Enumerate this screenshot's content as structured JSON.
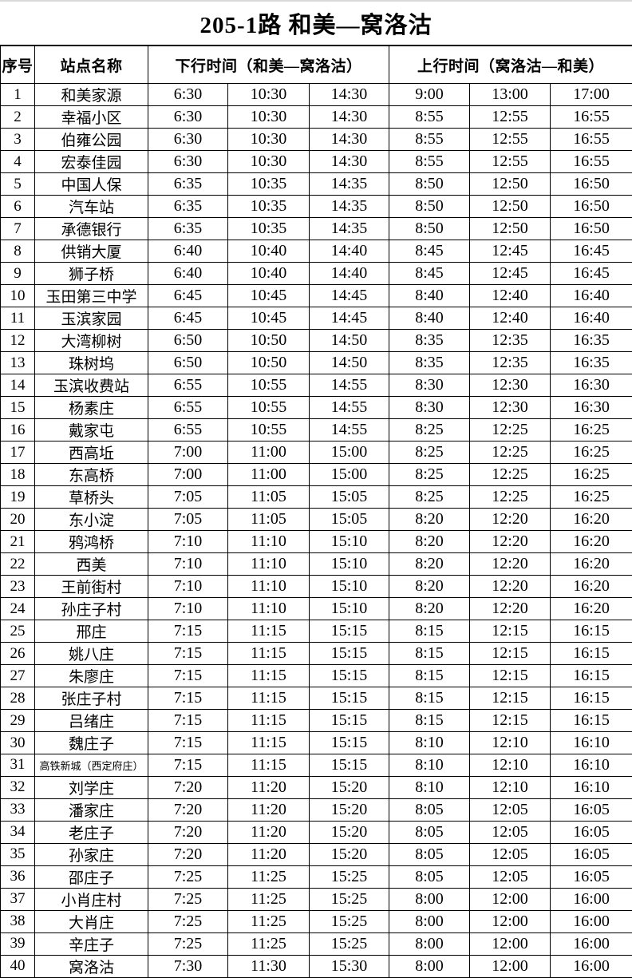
{
  "title": "205-1路 和美—窝洛沽",
  "table": {
    "headers": {
      "no": "序号",
      "station": "站点名称",
      "down": "下行时间（和美—窝洛沽）",
      "up": "上行时间（窝洛沽—和美）"
    },
    "rows": [
      {
        "no": "1",
        "station": "和美家源",
        "down": [
          "6:30",
          "10:30",
          "14:30"
        ],
        "up": [
          "9:00",
          "13:00",
          "17:00"
        ]
      },
      {
        "no": "2",
        "station": "幸福小区",
        "down": [
          "6:30",
          "10:30",
          "14:30"
        ],
        "up": [
          "8:55",
          "12:55",
          "16:55"
        ]
      },
      {
        "no": "3",
        "station": "伯雍公园",
        "down": [
          "6:30",
          "10:30",
          "14:30"
        ],
        "up": [
          "8:55",
          "12:55",
          "16:55"
        ]
      },
      {
        "no": "4",
        "station": "宏泰佳园",
        "down": [
          "6:30",
          "10:30",
          "14:30"
        ],
        "up": [
          "8:55",
          "12:55",
          "16:55"
        ]
      },
      {
        "no": "5",
        "station": "中国人保",
        "down": [
          "6:35",
          "10:35",
          "14:35"
        ],
        "up": [
          "8:50",
          "12:50",
          "16:50"
        ]
      },
      {
        "no": "6",
        "station": "汽车站",
        "down": [
          "6:35",
          "10:35",
          "14:35"
        ],
        "up": [
          "8:50",
          "12:50",
          "16:50"
        ]
      },
      {
        "no": "7",
        "station": "承德银行",
        "down": [
          "6:35",
          "10:35",
          "14:35"
        ],
        "up": [
          "8:50",
          "12:50",
          "16:50"
        ]
      },
      {
        "no": "8",
        "station": "供销大厦",
        "down": [
          "6:40",
          "10:40",
          "14:40"
        ],
        "up": [
          "8:45",
          "12:45",
          "16:45"
        ]
      },
      {
        "no": "9",
        "station": "狮子桥",
        "down": [
          "6:40",
          "10:40",
          "14:40"
        ],
        "up": [
          "8:45",
          "12:45",
          "16:45"
        ]
      },
      {
        "no": "10",
        "station": "玉田第三中学",
        "down": [
          "6:45",
          "10:45",
          "14:45"
        ],
        "up": [
          "8:40",
          "12:40",
          "16:40"
        ]
      },
      {
        "no": "11",
        "station": "玉滨家园",
        "down": [
          "6:45",
          "10:45",
          "14:45"
        ],
        "up": [
          "8:40",
          "12:40",
          "16:40"
        ]
      },
      {
        "no": "12",
        "station": "大湾柳树",
        "down": [
          "6:50",
          "10:50",
          "14:50"
        ],
        "up": [
          "8:35",
          "12:35",
          "16:35"
        ]
      },
      {
        "no": "13",
        "station": "珠树坞",
        "down": [
          "6:50",
          "10:50",
          "14:50"
        ],
        "up": [
          "8:35",
          "12:35",
          "16:35"
        ]
      },
      {
        "no": "14",
        "station": "玉滨收费站",
        "down": [
          "6:55",
          "10:55",
          "14:55"
        ],
        "up": [
          "8:30",
          "12:30",
          "16:30"
        ]
      },
      {
        "no": "15",
        "station": "杨素庄",
        "down": [
          "6:55",
          "10:55",
          "14:55"
        ],
        "up": [
          "8:30",
          "12:30",
          "16:30"
        ]
      },
      {
        "no": "16",
        "station": "戴家屯",
        "down": [
          "6:55",
          "10:55",
          "14:55"
        ],
        "up": [
          "8:25",
          "12:25",
          "16:25"
        ]
      },
      {
        "no": "17",
        "station": "西高坵",
        "down": [
          "7:00",
          "11:00",
          "15:00"
        ],
        "up": [
          "8:25",
          "12:25",
          "16:25"
        ]
      },
      {
        "no": "18",
        "station": "东高桥",
        "down": [
          "7:00",
          "11:00",
          "15:00"
        ],
        "up": [
          "8:25",
          "12:25",
          "16:25"
        ]
      },
      {
        "no": "19",
        "station": "草桥头",
        "down": [
          "7:05",
          "11:05",
          "15:05"
        ],
        "up": [
          "8:25",
          "12:25",
          "16:25"
        ]
      },
      {
        "no": "20",
        "station": "东小淀",
        "down": [
          "7:05",
          "11:05",
          "15:05"
        ],
        "up": [
          "8:20",
          "12:20",
          "16:20"
        ]
      },
      {
        "no": "21",
        "station": "鸦鸿桥",
        "down": [
          "7:10",
          "11:10",
          "15:10"
        ],
        "up": [
          "8:20",
          "12:20",
          "16:20"
        ]
      },
      {
        "no": "22",
        "station": "西美",
        "down": [
          "7:10",
          "11:10",
          "15:10"
        ],
        "up": [
          "8:20",
          "12:20",
          "16:20"
        ]
      },
      {
        "no": "23",
        "station": "王前街村",
        "down": [
          "7:10",
          "11:10",
          "15:10"
        ],
        "up": [
          "8:20",
          "12:20",
          "16:20"
        ]
      },
      {
        "no": "24",
        "station": "孙庄子村",
        "down": [
          "7:10",
          "11:10",
          "15:10"
        ],
        "up": [
          "8:20",
          "12:20",
          "16:20"
        ]
      },
      {
        "no": "25",
        "station": "邢庄",
        "down": [
          "7:15",
          "11:15",
          "15:15"
        ],
        "up": [
          "8:15",
          "12:15",
          "16:15"
        ]
      },
      {
        "no": "26",
        "station": "姚八庄",
        "down": [
          "7:15",
          "11:15",
          "15:15"
        ],
        "up": [
          "8:15",
          "12:15",
          "16:15"
        ]
      },
      {
        "no": "27",
        "station": "朱廖庄",
        "down": [
          "7:15",
          "11:15",
          "15:15"
        ],
        "up": [
          "8:15",
          "12:15",
          "16:15"
        ]
      },
      {
        "no": "28",
        "station": "张庄子村",
        "down": [
          "7:15",
          "11:15",
          "15:15"
        ],
        "up": [
          "8:15",
          "12:15",
          "16:15"
        ]
      },
      {
        "no": "29",
        "station": "吕绪庄",
        "down": [
          "7:15",
          "11:15",
          "15:15"
        ],
        "up": [
          "8:15",
          "12:15",
          "16:15"
        ]
      },
      {
        "no": "30",
        "station": "魏庄子",
        "down": [
          "7:15",
          "11:15",
          "15:15"
        ],
        "up": [
          "8:10",
          "12:10",
          "16:10"
        ]
      },
      {
        "no": "31",
        "station": "高铁新城（西定府庄）",
        "down": [
          "7:15",
          "11:15",
          "15:15"
        ],
        "up": [
          "8:10",
          "12:10",
          "16:10"
        ]
      },
      {
        "no": "32",
        "station": "刘学庄",
        "down": [
          "7:20",
          "11:20",
          "15:20"
        ],
        "up": [
          "8:10",
          "12:10",
          "16:10"
        ]
      },
      {
        "no": "33",
        "station": "潘家庄",
        "down": [
          "7:20",
          "11:20",
          "15:20"
        ],
        "up": [
          "8:05",
          "12:05",
          "16:05"
        ]
      },
      {
        "no": "34",
        "station": "老庄子",
        "down": [
          "7:20",
          "11:20",
          "15:20"
        ],
        "up": [
          "8:05",
          "12:05",
          "16:05"
        ]
      },
      {
        "no": "35",
        "station": "孙家庄",
        "down": [
          "7:20",
          "11:20",
          "15:20"
        ],
        "up": [
          "8:05",
          "12:05",
          "16:05"
        ]
      },
      {
        "no": "36",
        "station": "邵庄子",
        "down": [
          "7:25",
          "11:25",
          "15:25"
        ],
        "up": [
          "8:05",
          "12:05",
          "16:05"
        ]
      },
      {
        "no": "37",
        "station": "小肖庄村",
        "down": [
          "7:25",
          "11:25",
          "15:25"
        ],
        "up": [
          "8:00",
          "12:00",
          "16:00"
        ]
      },
      {
        "no": "38",
        "station": "大肖庄",
        "down": [
          "7:25",
          "11:25",
          "15:25"
        ],
        "up": [
          "8:00",
          "12:00",
          "16:00"
        ]
      },
      {
        "no": "39",
        "station": "辛庄子",
        "down": [
          "7:25",
          "11:25",
          "15:25"
        ],
        "up": [
          "8:00",
          "12:00",
          "16:00"
        ]
      },
      {
        "no": "40",
        "station": "窝洛沽",
        "down": [
          "7:30",
          "11:30",
          "15:30"
        ],
        "up": [
          "8:00",
          "12:00",
          "16:00"
        ]
      }
    ]
  }
}
